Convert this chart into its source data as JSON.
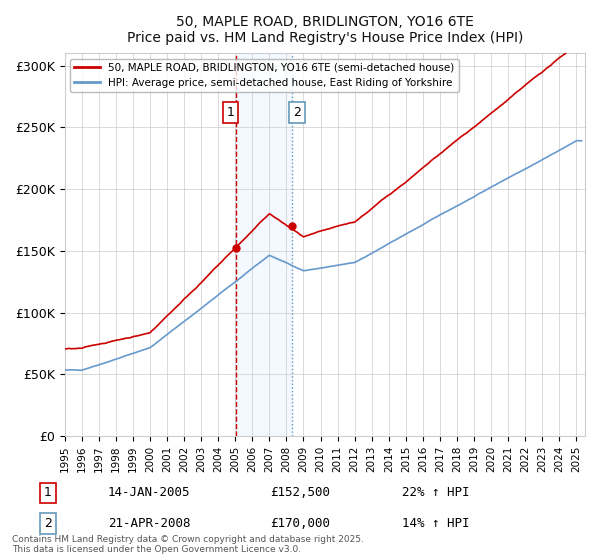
{
  "title": "50, MAPLE ROAD, BRIDLINGTON, YO16 6TE",
  "subtitle": "Price paid vs. HM Land Registry's House Price Index (HPI)",
  "ylabel_ticks": [
    "£0",
    "£50K",
    "£100K",
    "£150K",
    "£200K",
    "£250K",
    "£300K"
  ],
  "ytick_values": [
    0,
    50000,
    100000,
    150000,
    200000,
    250000,
    300000
  ],
  "ylim": [
    0,
    310000
  ],
  "xlim_start": 1995.0,
  "xlim_end": 2025.5,
  "sale1_x": 2005.04,
  "sale1_y": 152500,
  "sale2_x": 2008.31,
  "sale2_y": 170000,
  "sale1_label": "14-JAN-2005",
  "sale1_price": "£152,500",
  "sale1_hpi": "22% ↑ HPI",
  "sale2_label": "21-APR-2008",
  "sale2_price": "£170,000",
  "sale2_hpi": "14% ↑ HPI",
  "legend_line1": "50, MAPLE ROAD, BRIDLINGTON, YO16 6TE (semi-detached house)",
  "legend_line2": "HPI: Average price, semi-detached house, East Riding of Yorkshire",
  "copyright_text": "Contains HM Land Registry data © Crown copyright and database right 2025.\nThis data is licensed under the Open Government Licence v3.0.",
  "line_color_red": "#cc0000",
  "line_color_blue": "#6699cc",
  "shading_color": "#ddeeff",
  "vline_color_red": "#cc0000",
  "vline_color_blue": "#6699bb",
  "background_color": "#ffffff",
  "grid_color": "#cccccc"
}
